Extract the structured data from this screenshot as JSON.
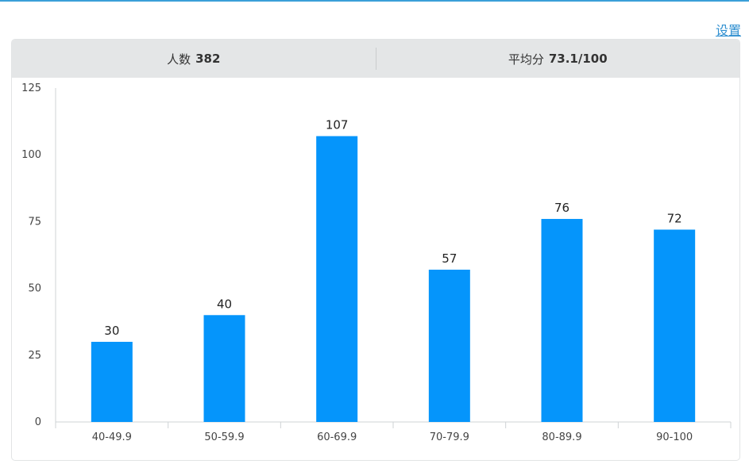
{
  "header": {
    "settings_label": "设置"
  },
  "stats": [
    {
      "label": "人数",
      "value": "382"
    },
    {
      "label": "平均分",
      "value": "73.1/100"
    }
  ],
  "colors": {
    "bar": "#0595fb",
    "stats_bg": "#e4e6e7",
    "link": "#2f8fd0"
  },
  "chart_data": {
    "type": "bar",
    "categories": [
      "40-49.9",
      "50-59.9",
      "60-69.9",
      "70-79.9",
      "80-89.9",
      "90-100"
    ],
    "values": [
      30,
      40,
      107,
      57,
      76,
      72
    ],
    "yticks": [
      0,
      25,
      50,
      75,
      100,
      125
    ],
    "ylim": [
      0,
      125
    ],
    "title": "",
    "xlabel": "",
    "ylabel": "",
    "grid": false,
    "data_labels": true
  }
}
